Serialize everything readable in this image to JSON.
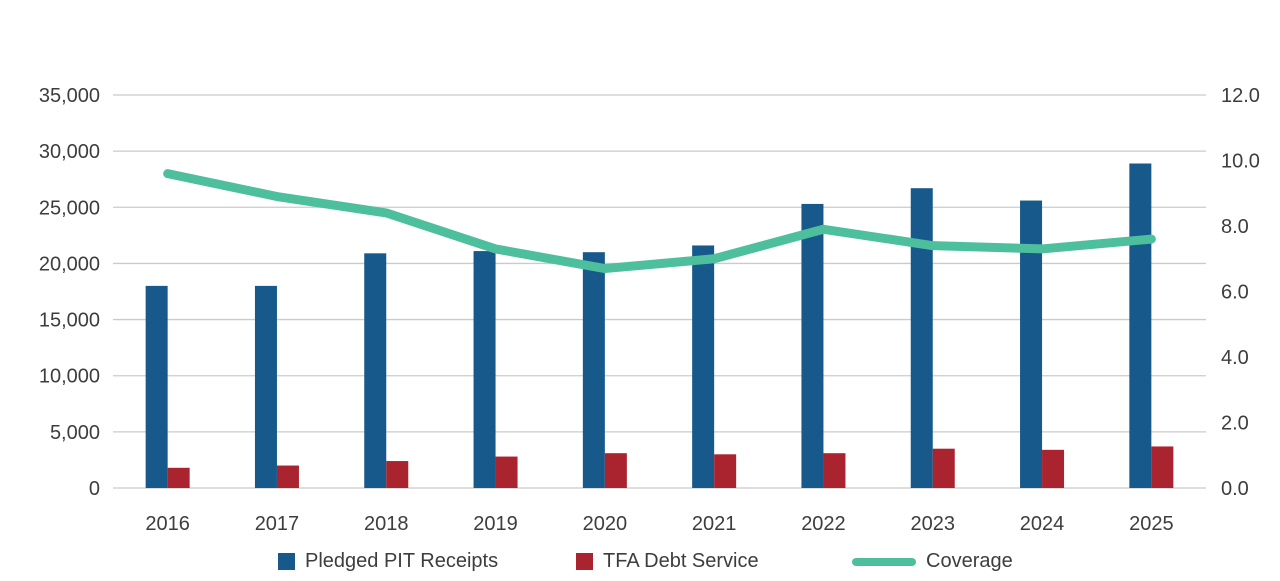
{
  "chart_data": {
    "type": "bar",
    "title": "",
    "categories": [
      "2016",
      "2017",
      "2018",
      "2019",
      "2020",
      "2021",
      "2022",
      "2023",
      "2024",
      "2025"
    ],
    "series": [
      {
        "name": "Pledged PIT Receipts",
        "type": "bar",
        "axis": "left",
        "color": "#16598a",
        "values": [
          18000,
          18000,
          20900,
          21100,
          21000,
          21600,
          25300,
          26700,
          25600,
          28900
        ]
      },
      {
        "name": "TFA Debt Service",
        "type": "bar",
        "axis": "left",
        "color": "#aa242f",
        "values": [
          1800,
          2000,
          2400,
          2800,
          3100,
          3000,
          3100,
          3500,
          3400,
          3700
        ]
      },
      {
        "name": "Coverage",
        "type": "line",
        "axis": "right",
        "color": "#4dbf9c",
        "values": [
          9.6,
          8.9,
          8.4,
          7.3,
          6.7,
          7.0,
          7.9,
          7.4,
          7.3,
          7.6
        ]
      }
    ],
    "left_axis": {
      "min": 0,
      "max": 35000,
      "step": 5000,
      "tick_labels": [
        "0",
        "5,000",
        "10,000",
        "15,000",
        "20,000",
        "25,000",
        "30,000",
        "35,000"
      ]
    },
    "right_axis": {
      "min": 0,
      "max": 12,
      "step": 2,
      "tick_labels": [
        "0.0",
        "2.0",
        "4.0",
        "6.0",
        "8.0",
        "10.0",
        "12.0"
      ]
    },
    "grid": "horizontal",
    "legend_position": "bottom",
    "xlabel": "",
    "ylabel": ""
  },
  "colors": {
    "gridline": "#cbcbcb",
    "axis_text": "#3d3d3d",
    "background": "#ffffff"
  }
}
